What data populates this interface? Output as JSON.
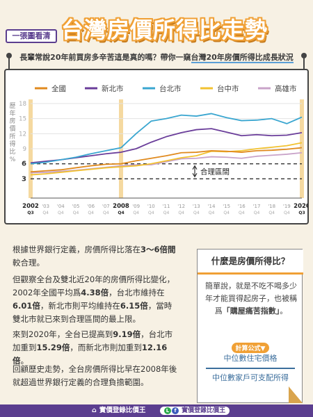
{
  "header": {
    "tag": "一張圖看清",
    "title": "台灣房價所得比走勢",
    "subtitle_pre": "長輩常說20年前買房多辛苦這是真的嗎？帶你一窺",
    "subtitle_hl": "台灣20年房價所得比成長狀況"
  },
  "colors": {
    "national": "#e08a1e",
    "new_taipei": "#6a3d9a",
    "taipei": "#3aa6d0",
    "taichung": "#f2c230",
    "kaohsiung": "#c9a3c9",
    "band": "#f5d9a0"
  },
  "chart_data": {
    "type": "line",
    "ylabel": "歷年房價所得比 %",
    "ylim": [
      0,
      18
    ],
    "yticks": [
      "3",
      "6",
      "9",
      "12",
      "15",
      "18"
    ],
    "x_start": 2002,
    "x_end": 2020,
    "x_labels": [
      {
        "year": 2002,
        "text": "2002",
        "sub": "Q3",
        "bold": true
      },
      {
        "year": 2003,
        "text": "'03",
        "sub": "Q4"
      },
      {
        "year": 2004,
        "text": "'04",
        "sub": "Q4"
      },
      {
        "year": 2005,
        "text": "'05",
        "sub": "Q4"
      },
      {
        "year": 2006,
        "text": "'06",
        "sub": "Q4"
      },
      {
        "year": 2007,
        "text": "'07",
        "sub": "Q4"
      },
      {
        "year": 2008,
        "text": "2008",
        "sub": "Q4",
        "bold": true
      },
      {
        "year": 2009,
        "text": "'09",
        "sub": "Q4"
      },
      {
        "year": 2010,
        "text": "'10",
        "sub": "Q4"
      },
      {
        "year": 2011,
        "text": "'11",
        "sub": "Q4"
      },
      {
        "year": 2012,
        "text": "'12",
        "sub": "Q4"
      },
      {
        "year": 2013,
        "text": "'13",
        "sub": "Q4"
      },
      {
        "year": 2014,
        "text": "'14",
        "sub": "Q4"
      },
      {
        "year": 2015,
        "text": "'15",
        "sub": "Q4"
      },
      {
        "year": 2016,
        "text": "'16",
        "sub": "Q4"
      },
      {
        "year": 2017,
        "text": "'17",
        "sub": "Q4"
      },
      {
        "year": 2018,
        "text": "'18",
        "sub": "Q4"
      },
      {
        "year": 2019,
        "text": "'19",
        "sub": "Q4"
      },
      {
        "year": 2020,
        "text": "2020",
        "sub": "Q3",
        "bold": true
      }
    ],
    "highlight_years": [
      2002,
      2008,
      2020
    ],
    "reference_lines": [
      3,
      6
    ],
    "annotation": "合理區間",
    "series": [
      {
        "key": "national",
        "name": "全國",
        "values": [
          4.4,
          4.6,
          4.8,
          5.2,
          5.6,
          5.9,
          6.0,
          6.6,
          7.1,
          7.6,
          8.2,
          8.3,
          8.6,
          8.5,
          8.3,
          8.6,
          8.7,
          8.9,
          9.2
        ]
      },
      {
        "key": "new_taipei",
        "name": "新北市",
        "values": [
          6.2,
          6.5,
          6.8,
          7.2,
          7.6,
          8.0,
          8.3,
          9.0,
          10.3,
          11.4,
          12.2,
          12.8,
          13.0,
          12.3,
          11.6,
          11.8,
          11.6,
          11.7,
          12.2
        ]
      },
      {
        "key": "taipei",
        "name": "台北市",
        "values": [
          6.0,
          6.3,
          6.8,
          7.3,
          8.0,
          8.6,
          9.2,
          12.0,
          14.5,
          15.0,
          15.7,
          15.5,
          16.0,
          15.2,
          14.6,
          14.7,
          15.0,
          14.0,
          15.3
        ]
      },
      {
        "key": "taichung",
        "name": "台中市",
        "values": [
          3.8,
          4.0,
          4.3,
          4.6,
          4.9,
          5.2,
          5.4,
          5.6,
          6.0,
          6.6,
          7.2,
          7.6,
          8.5,
          8.4,
          8.6,
          9.0,
          9.3,
          9.6,
          10.2
        ]
      },
      {
        "key": "kaohsiung",
        "name": "高雄市",
        "values": [
          4.2,
          4.3,
          4.5,
          4.7,
          5.0,
          5.3,
          5.6,
          5.8,
          5.8,
          6.4,
          7.0,
          7.1,
          7.4,
          7.3,
          7.1,
          7.5,
          7.7,
          7.9,
          8.2
        ]
      }
    ]
  },
  "body": {
    "p1_a": "根據世界銀行定義，房價所得比落在",
    "p1_b": "3～6倍間",
    "p1_c": "較合理。",
    "p2_a": "但觀察全台及雙北近20年的房價所得比變化，2002年全國平均爲",
    "p2_b": "4.38倍",
    "p2_c": "，台北市維持在",
    "p2_d": "6.01倍",
    "p2_e": "，新北市則平均維持在",
    "p2_f": "6.15倍",
    "p2_g": "，當時雙北市就已來到合理區間的最上限。",
    "p3_a": "來到2020年，全台已提高到",
    "p3_b": "9.19倍",
    "p3_c": "，台北市加重到",
    "p3_d": "15.29倍",
    "p3_e": "，而新北市則加重到",
    "p3_f": "12.16倍",
    "p3_g": "。",
    "p4": "回顧歷史走勢，全台房價所得比早在2008年後就超過世界銀行定義的合理負擔範圍。"
  },
  "info": {
    "title": "什麼是房價所得比？",
    "text_a": "簡單說，就是不吃不喝多少年才能買得起房子，也被稱爲",
    "text_b": "「購屋痛苦指數」",
    "text_c": "。",
    "formula_label": "計算公式▼",
    "formula_top": "中位數住宅價格",
    "formula_bottom": "中位數家戶可支配所得"
  },
  "footer": {
    "brand": "實價登錄比價王",
    "social": "實價登錄比價王"
  }
}
